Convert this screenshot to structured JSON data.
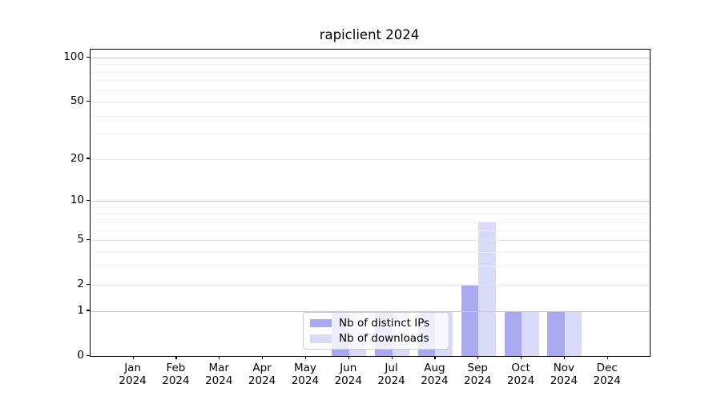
{
  "chart_data": {
    "type": "bar",
    "title": "rapiclient 2024",
    "categories": [
      "Jan 2024",
      "Feb 2024",
      "Mar 2024",
      "Apr 2024",
      "May 2024",
      "Jun 2024",
      "Jul 2024",
      "Aug 2024",
      "Sep 2024",
      "Oct 2024",
      "Nov 2024",
      "Dec 2024"
    ],
    "x_axis": {
      "months": [
        "Jan",
        "Feb",
        "Mar",
        "Apr",
        "May",
        "Jun",
        "Jul",
        "Aug",
        "Sep",
        "Oct",
        "Nov",
        "Dec"
      ],
      "year": "2024"
    },
    "y_axis": {
      "scale": "log1p",
      "ylim": [
        0,
        115
      ],
      "ticks": [
        {
          "v": 100,
          "label": "100"
        },
        {
          "v": 50,
          "label": "50"
        },
        {
          "v": 20,
          "label": "20"
        },
        {
          "v": 10,
          "label": "10"
        },
        {
          "v": 5,
          "label": "5"
        },
        {
          "v": 2,
          "label": "2"
        },
        {
          "v": 1,
          "label": "1"
        },
        {
          "v": 0,
          "label": "0"
        }
      ],
      "minor_gridlines": [
        3,
        4,
        6,
        7,
        8,
        9,
        30,
        40,
        60,
        70,
        80,
        90
      ]
    },
    "series": [
      {
        "name": "Nb of distinct IPs",
        "color": "#a9a9f0",
        "values": [
          0,
          0,
          0,
          0,
          0,
          1,
          1,
          1,
          2,
          1,
          1,
          0
        ]
      },
      {
        "name": "Nb of downloads",
        "color": "#d9d9f8",
        "values": [
          0,
          0,
          0,
          0,
          0,
          1,
          1,
          1,
          7,
          1,
          1,
          0
        ]
      }
    ],
    "legend": {
      "position": "inside-bottom-center"
    },
    "grid": "horizontal-only",
    "colors": {
      "grid_decade": "#c8c8c8",
      "grid_major": "#e2e2e2",
      "grid_minor": "#efefef",
      "spine": "#000000",
      "background": "#ffffff"
    }
  }
}
